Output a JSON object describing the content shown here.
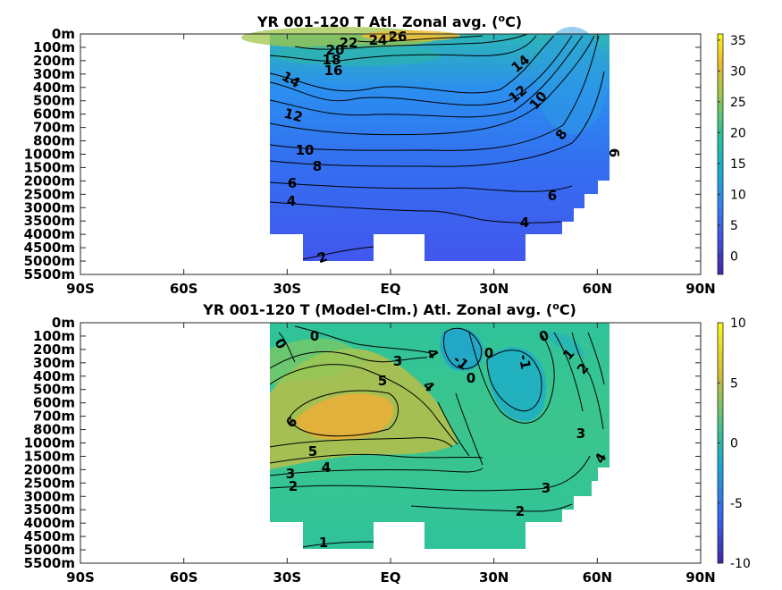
{
  "chart_data": [
    {
      "type": "heatmap",
      "title": "YR 001-120 T Atl. Zonal avg.",
      "title_unit": "(oC)",
      "x_ticks": [
        "90S",
        "60S",
        "30S",
        "EQ",
        "30N",
        "60N",
        "90N"
      ],
      "x_values": [
        -90,
        -60,
        -30,
        0,
        30,
        60,
        90
      ],
      "y_ticks": [
        "0m",
        "100m",
        "200m",
        "300m",
        "400m",
        "500m",
        "600m",
        "700m",
        "800m",
        "1000m",
        "1500m",
        "2000m",
        "2500m",
        "3000m",
        "3500m",
        "4000m",
        "4500m",
        "5000m",
        "5500m"
      ],
      "colorbar_ticks": [
        "35",
        "30",
        "25",
        "20",
        "15",
        "10",
        "5",
        "0"
      ],
      "colorbar_values": [
        35,
        30,
        25,
        20,
        15,
        10,
        5,
        0
      ],
      "colorbar_range": [
        -3,
        36
      ],
      "contours": [
        {
          "label": "26",
          "lat": -2,
          "depth": "0m",
          "value": 26
        },
        {
          "label": "24",
          "lat": -3,
          "depth": "100m",
          "value": 24
        },
        {
          "label": "22",
          "lat": -11,
          "depth": "100m",
          "value": 22
        },
        {
          "label": "20",
          "lat": -16,
          "depth": "100m",
          "value": 20
        },
        {
          "label": "18",
          "lat": -17,
          "depth": "200m",
          "value": 18
        },
        {
          "label": "16",
          "lat": -16,
          "depth": "300m",
          "value": 16
        },
        {
          "label": "14",
          "lat": -28,
          "depth": "350m",
          "value": 14
        },
        {
          "label": "14",
          "lat": 40,
          "depth": "250m",
          "value": 14
        },
        {
          "label": "12",
          "lat": -28,
          "depth": "500m",
          "value": 12
        },
        {
          "label": "12",
          "lat": 37,
          "depth": "450m",
          "value": 12
        },
        {
          "label": "10",
          "lat": -25,
          "depth": "1000m",
          "value": 10
        },
        {
          "label": "10",
          "lat": 43,
          "depth": "500m",
          "value": 10
        },
        {
          "label": "8",
          "lat": -22,
          "depth": "1500m",
          "value": 8
        },
        {
          "label": "8",
          "lat": 48,
          "depth": "700m",
          "value": 8
        },
        {
          "label": "6",
          "lat": -28,
          "depth": "2000m",
          "value": 6
        },
        {
          "label": "6",
          "lat": 47,
          "depth": "2500m",
          "value": 6
        },
        {
          "label": "6",
          "lat": 62,
          "depth": "1000m",
          "value": 6
        },
        {
          "label": "4",
          "lat": -28,
          "depth": "2500m",
          "value": 4
        },
        {
          "label": "4",
          "lat": 39,
          "depth": "3500m",
          "value": 4
        },
        {
          "label": "2",
          "lat": -20,
          "depth": "5000m",
          "value": 2
        }
      ]
    },
    {
      "type": "heatmap",
      "title": "YR 001-120 T (Model-Clm.) Atl. Zonal avg.",
      "title_unit": "(oC)",
      "x_ticks": [
        "90S",
        "60S",
        "30S",
        "EQ",
        "30N",
        "60N",
        "90N"
      ],
      "x_values": [
        -90,
        -60,
        -30,
        0,
        30,
        60,
        90
      ],
      "y_ticks": [
        "0m",
        "100m",
        "200m",
        "300m",
        "400m",
        "500m",
        "600m",
        "700m",
        "800m",
        "1000m",
        "1500m",
        "2000m",
        "2500m",
        "3000m",
        "3500m",
        "4000m",
        "4500m",
        "5000m",
        "5500m"
      ],
      "colorbar_ticks": [
        "10",
        "5",
        "0",
        "-5",
        "-10"
      ],
      "colorbar_values": [
        10,
        5,
        0,
        -5,
        -10
      ],
      "colorbar_range": [
        -10,
        10
      ],
      "contours": [
        {
          "label": "0",
          "lat": -32,
          "depth": "200m",
          "value": 0
        },
        {
          "label": "0",
          "lat": -22,
          "depth": "100m",
          "value": 0
        },
        {
          "label": "3",
          "lat": 2,
          "depth": "300m",
          "value": 3
        },
        {
          "label": "4",
          "lat": 12,
          "depth": "300m",
          "value": 4
        },
        {
          "label": "-1",
          "lat": 20,
          "depth": "400m",
          "value": -1
        },
        {
          "label": "0",
          "lat": 28,
          "depth": "300m",
          "value": 0
        },
        {
          "label": "0",
          "lat": 23,
          "depth": "500m",
          "value": 0
        },
        {
          "label": "0",
          "lat": 44,
          "depth": "100m",
          "value": 0
        },
        {
          "label": "-1",
          "lat": 40,
          "depth": "400m",
          "value": -1
        },
        {
          "label": "1",
          "lat": 52,
          "depth": "300m",
          "value": 1
        },
        {
          "label": "2",
          "lat": 55,
          "depth": "400m",
          "value": 2
        },
        {
          "label": "5",
          "lat": -2,
          "depth": "500m",
          "value": 5
        },
        {
          "label": "4",
          "lat": 11,
          "depth": "600m",
          "value": 4
        },
        {
          "label": "6",
          "lat": -33,
          "depth": "800m",
          "value": 6
        },
        {
          "label": "5",
          "lat": -22,
          "depth": "1500m",
          "value": 5
        },
        {
          "label": "4",
          "lat": -18,
          "depth": "2000m",
          "value": 4
        },
        {
          "label": "3",
          "lat": -31,
          "depth": "2500m",
          "value": 3
        },
        {
          "label": "2",
          "lat": -31,
          "depth": "3000m",
          "value": 2
        },
        {
          "label": "3",
          "lat": 58,
          "depth": "1000m",
          "value": 3
        },
        {
          "label": "4",
          "lat": 61,
          "depth": "2000m",
          "value": 4
        },
        {
          "label": "3",
          "lat": 45,
          "depth": "3000m",
          "value": 3
        },
        {
          "label": "2",
          "lat": 38,
          "depth": "4000m",
          "value": 2
        },
        {
          "label": "1",
          "lat": -20,
          "depth": "5000m",
          "value": 1
        }
      ]
    }
  ],
  "colors": {
    "low": "#3e26a8",
    "mid": "#2db9b0",
    "high": "#f9fb15",
    "land": "#ffffff"
  }
}
